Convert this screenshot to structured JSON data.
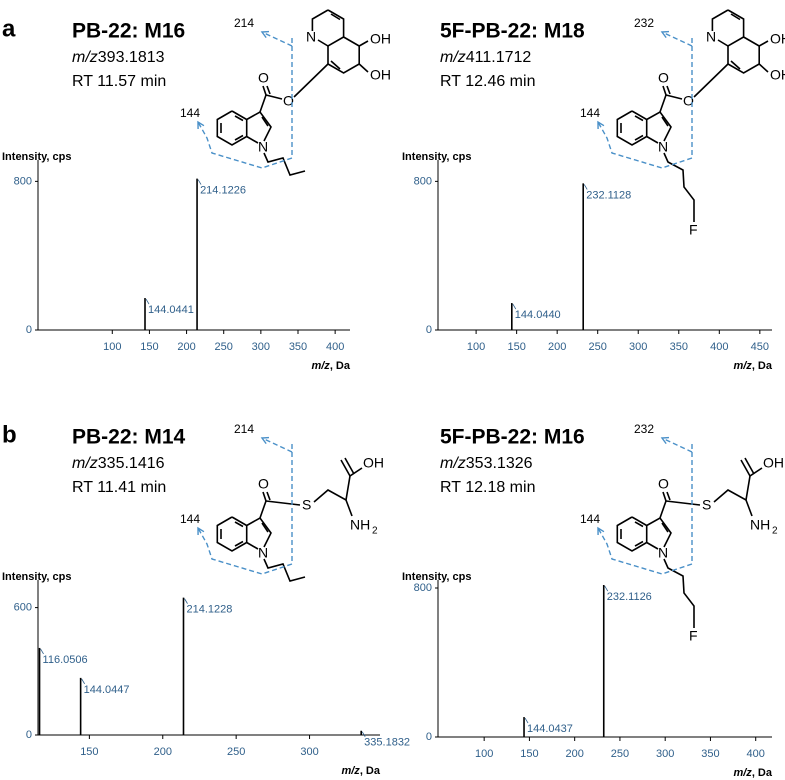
{
  "panel_labels": [
    "a",
    "b"
  ],
  "chart_data": [
    {
      "type": "bar",
      "title": "PB-22: M16",
      "subtitle_prefix": "m/z",
      "subtitle": "393.1813",
      "rt": "RT 11.57 min",
      "ylabel": "Intensity, cps",
      "xlabel_prefix": "m/z",
      "xlabel": ", Da",
      "x": [
        144.0441,
        214.1226
      ],
      "x_labels": [
        "144.0441",
        "214.1226"
      ],
      "values": [
        172,
        815
      ],
      "color": "#000000",
      "xlim": [
        0,
        420
      ],
      "xticks": [
        100,
        150,
        200,
        250,
        300,
        350,
        400
      ],
      "ylim": [
        0,
        915
      ],
      "yticks": [
        0,
        800
      ],
      "structure": {
        "atoms": [
          "N",
          "OH",
          "OH",
          "O",
          "O",
          "N"
        ],
        "fragments": [
          "214",
          "144"
        ]
      }
    },
    {
      "type": "bar",
      "title": "5F-PB-22: M18",
      "subtitle_prefix": "m/z",
      "subtitle": "411.1712",
      "rt": "RT 12.46 min",
      "ylabel": "Intensity, cps",
      "xlabel_prefix": "m/z",
      "xlabel": ", Da",
      "x": [
        144.044,
        232.1128
      ],
      "x_labels": [
        "144.0440",
        "232.1128"
      ],
      "values": [
        145,
        789
      ],
      "color": "#000000",
      "xlim": [
        53,
        465
      ],
      "xticks": [
        100,
        150,
        200,
        250,
        300,
        350,
        400,
        450
      ],
      "ylim": [
        0,
        915
      ],
      "yticks": [
        0,
        800
      ],
      "structure": {
        "atoms": [
          "N",
          "OH",
          "OH",
          "O",
          "O",
          "N",
          "F"
        ],
        "fragments": [
          "232",
          "144"
        ]
      }
    },
    {
      "type": "bar",
      "title": "PB-22: M14",
      "subtitle_prefix": "m/z",
      "subtitle": "335.1416",
      "rt": "RT 11.41 min",
      "ylabel": "Intensity, cps",
      "xlabel_prefix": "m/z",
      "xlabel": ", Da",
      "x": [
        116.0506,
        144.0447,
        214.1228,
        335.1832
      ],
      "x_labels": [
        "116.0506",
        "144.0447",
        "214.1228",
        "335.1832"
      ],
      "values": [
        410,
        269,
        647,
        20
      ],
      "color": "#000000",
      "xlim": [
        115,
        348
      ],
      "xticks": [
        150,
        200,
        250,
        300
      ],
      "ylim": [
        0,
        730
      ],
      "yticks": [
        0,
        600
      ],
      "structure": {
        "atoms": [
          "O",
          "S",
          "OH",
          "NH",
          "2",
          "N"
        ],
        "fragments": [
          "214",
          "144"
        ]
      }
    },
    {
      "type": "bar",
      "title": "5F-PB-22: M16",
      "subtitle_prefix": "m/z",
      "subtitle": "353.1326",
      "rt": "RT 12.18 min",
      "ylabel": "Intensity, cps",
      "xlabel_prefix": "m/z",
      "xlabel": ", Da",
      "x": [
        144.0437,
        232.1126
      ],
      "x_labels": [
        "144.0437",
        "232.1126"
      ],
      "values": [
        107,
        816
      ],
      "color": "#000000",
      "xlim": [
        49,
        418
      ],
      "xticks": [
        100,
        150,
        200,
        250,
        300,
        350,
        400
      ],
      "ylim": [
        0,
        843
      ],
      "yticks": [
        0,
        800
      ],
      "structure": {
        "atoms": [
          "O",
          "S",
          "OH",
          "NH",
          "2",
          "N",
          "F"
        ],
        "fragments": [
          "232",
          "144"
        ]
      }
    }
  ]
}
